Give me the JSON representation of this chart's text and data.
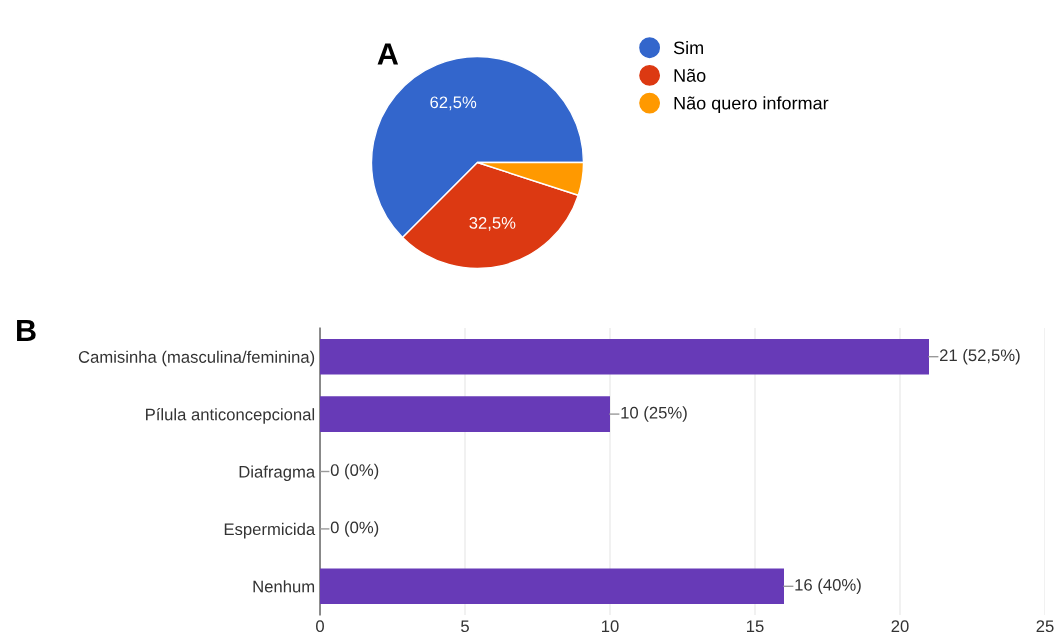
{
  "chart_data": [
    {
      "type": "pie",
      "annotations": [
        "A"
      ],
      "categories": [
        "Sim",
        "Não",
        "Não quero informar"
      ],
      "values": [
        62.5,
        32.5,
        5
      ],
      "colors": [
        "#3366cc",
        "#dc3912",
        "#ff9900"
      ],
      "value_labels": [
        "62,5%",
        "32,5%",
        null
      ],
      "legend": "right"
    },
    {
      "type": "bar",
      "orientation": "horizontal",
      "annotations": [
        "B"
      ],
      "categories": [
        "Camisinha (masculina/feminina)",
        "Pílula anticoncepcional",
        "Diafragma",
        "Espermicida",
        "Nenhum"
      ],
      "values": [
        21,
        10,
        0,
        0,
        16
      ],
      "color": "#673ab7",
      "value_labels": [
        "21 (52,5%)",
        "10 (25%)",
        "0 (0%)",
        "0 (0%)",
        "16 (40%)"
      ],
      "xlim": [
        0,
        25
      ],
      "xticks": [
        0,
        5,
        10,
        15,
        20,
        25
      ],
      "grid": "x"
    }
  ]
}
